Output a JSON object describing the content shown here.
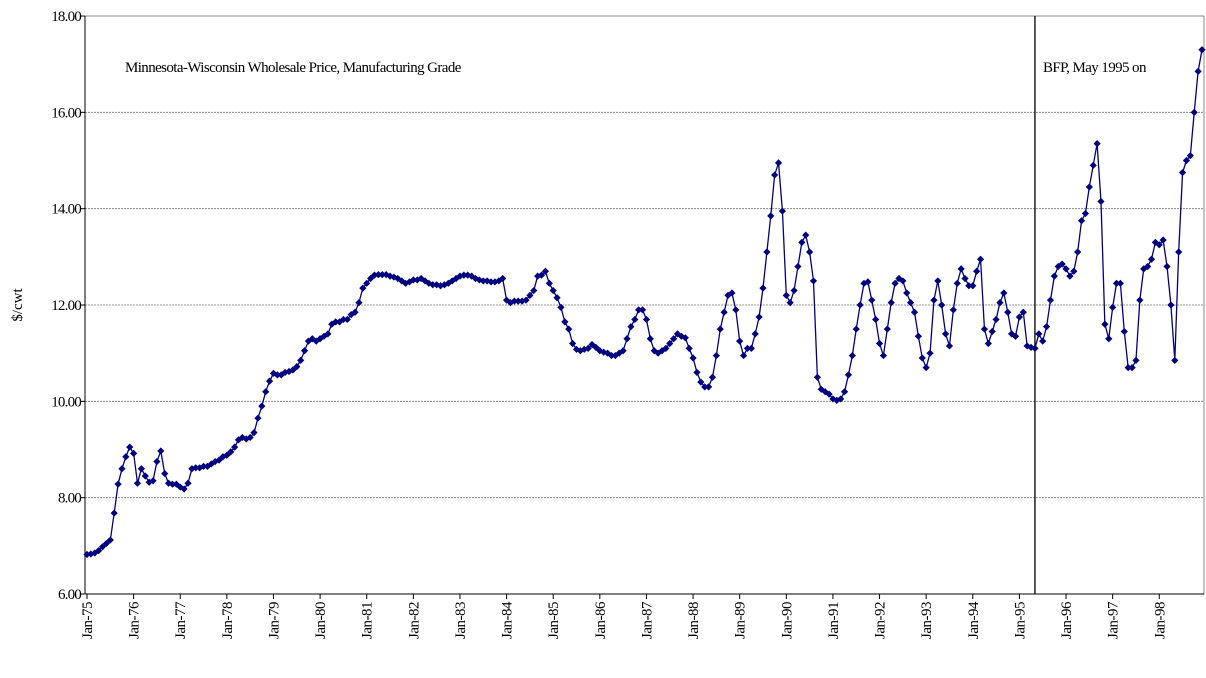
{
  "chart_data": {
    "type": "line",
    "y_label": "$/cwt",
    "annotations": [
      {
        "text": "Minnesota-Wisconsin Wholesale Price, Manufacturing Grade"
      },
      {
        "text": "BFP, May 1995 on",
        "category_index": 244
      }
    ],
    "categories": [
      "Jan-75",
      null,
      null,
      null,
      null,
      null,
      null,
      null,
      null,
      null,
      null,
      null,
      "Jan-76",
      null,
      null,
      null,
      null,
      null,
      null,
      null,
      null,
      null,
      null,
      null,
      "Jan-77",
      null,
      null,
      null,
      null,
      null,
      null,
      null,
      null,
      null,
      null,
      null,
      "Jan-78",
      null,
      null,
      null,
      null,
      null,
      null,
      null,
      null,
      null,
      null,
      null,
      "Jan-79",
      null,
      null,
      null,
      null,
      null,
      null,
      null,
      null,
      null,
      null,
      null,
      "Jan-80",
      null,
      null,
      null,
      null,
      null,
      null,
      null,
      null,
      null,
      null,
      null,
      "Jan-81",
      null,
      null,
      null,
      null,
      null,
      null,
      null,
      null,
      null,
      null,
      null,
      "Jan-82",
      null,
      null,
      null,
      null,
      null,
      null,
      null,
      null,
      null,
      null,
      null,
      "Jan-83",
      null,
      null,
      null,
      null,
      null,
      null,
      null,
      null,
      null,
      null,
      null,
      "Jan-84",
      null,
      null,
      null,
      null,
      null,
      null,
      null,
      null,
      null,
      null,
      null,
      "Jan-85",
      null,
      null,
      null,
      null,
      null,
      null,
      null,
      null,
      null,
      null,
      null,
      "Jan-86",
      null,
      null,
      null,
      null,
      null,
      null,
      null,
      null,
      null,
      null,
      null,
      "Jan-87",
      null,
      null,
      null,
      null,
      null,
      null,
      null,
      null,
      null,
      null,
      null,
      "Jan-88",
      null,
      null,
      null,
      null,
      null,
      null,
      null,
      null,
      null,
      null,
      null,
      "Jan-89",
      null,
      null,
      null,
      null,
      null,
      null,
      null,
      null,
      null,
      null,
      null,
      "Jan-90",
      null,
      null,
      null,
      null,
      null,
      null,
      null,
      null,
      null,
      null,
      null,
      "Jan-91",
      null,
      null,
      null,
      null,
      null,
      null,
      null,
      null,
      null,
      null,
      null,
      "Jan-92",
      null,
      null,
      null,
      null,
      null,
      null,
      null,
      null,
      null,
      null,
      null,
      "Jan-93",
      null,
      null,
      null,
      null,
      null,
      null,
      null,
      null,
      null,
      null,
      null,
      "Jan-94",
      null,
      null,
      null,
      null,
      null,
      null,
      null,
      null,
      null,
      null,
      null,
      "Jan-95",
      null,
      null,
      null,
      null,
      null,
      null,
      null,
      null,
      null,
      null,
      null,
      "Jan-96",
      null,
      null,
      null,
      null,
      null,
      null,
      null,
      null,
      null,
      null,
      null,
      "Jan-97",
      null,
      null,
      null,
      null,
      null,
      null,
      null,
      null,
      null,
      null,
      null,
      "Jan-98",
      null,
      null,
      null,
      null,
      null,
      null,
      null,
      null,
      null,
      null,
      null
    ],
    "color": "#000080",
    "values": [
      6.82,
      6.83,
      6.85,
      6.9,
      6.98,
      7.05,
      7.12,
      7.68,
      8.28,
      8.6,
      8.85,
      9.05,
      8.92,
      8.3,
      8.6,
      8.45,
      8.32,
      8.35,
      8.75,
      8.97,
      8.5,
      8.3,
      8.28,
      8.28,
      8.22,
      8.18,
      8.3,
      8.6,
      8.62,
      8.62,
      8.65,
      8.65,
      8.7,
      8.75,
      8.78,
      8.85,
      8.88,
      8.95,
      9.05,
      9.2,
      9.25,
      9.22,
      9.25,
      9.35,
      9.65,
      9.9,
      10.2,
      10.42,
      10.58,
      10.55,
      10.55,
      10.6,
      10.62,
      10.65,
      10.72,
      10.85,
      11.05,
      11.25,
      11.3,
      11.25,
      11.3,
      11.35,
      11.4,
      11.6,
      11.65,
      11.65,
      11.7,
      11.7,
      11.8,
      11.85,
      12.05,
      12.35,
      12.45,
      12.55,
      12.62,
      12.63,
      12.63,
      12.63,
      12.6,
      12.58,
      12.55,
      12.5,
      12.45,
      12.48,
      12.52,
      12.52,
      12.55,
      12.5,
      12.45,
      12.42,
      12.42,
      12.4,
      12.42,
      12.45,
      12.5,
      12.55,
      12.6,
      12.62,
      12.62,
      12.6,
      12.55,
      12.52,
      12.5,
      12.5,
      12.48,
      12.48,
      12.5,
      12.55,
      12.1,
      12.05,
      12.08,
      12.08,
      12.08,
      12.1,
      12.2,
      12.3,
      12.6,
      12.62,
      12.7,
      12.45,
      12.3,
      12.15,
      11.95,
      11.65,
      11.5,
      11.2,
      11.08,
      11.05,
      11.08,
      11.1,
      11.18,
      11.12,
      11.05,
      11.02,
      11.0,
      10.95,
      10.95,
      11.0,
      11.05,
      11.3,
      11.55,
      11.7,
      11.9,
      11.9,
      11.7,
      11.3,
      11.05,
      11.0,
      11.05,
      11.1,
      11.2,
      11.3,
      11.4,
      11.35,
      11.32,
      11.1,
      10.9,
      10.6,
      10.4,
      10.3,
      10.3,
      10.5,
      10.95,
      11.5,
      11.85,
      12.2,
      12.25,
      11.9,
      11.25,
      10.95,
      11.1,
      11.1,
      11.4,
      11.75,
      12.35,
      13.1,
      13.85,
      14.7,
      14.95,
      13.95,
      12.2,
      12.05,
      12.3,
      12.8,
      13.3,
      13.45,
      13.1,
      12.5,
      10.5,
      10.25,
      10.2,
      10.15,
      10.05,
      10.02,
      10.05,
      10.2,
      10.55,
      10.95,
      11.5,
      12.0,
      12.45,
      12.48,
      12.1,
      11.7,
      11.2,
      10.95,
      11.5,
      12.05,
      12.45,
      12.55,
      12.5,
      12.25,
      12.05,
      11.85,
      11.35,
      10.9,
      10.7,
      11.0,
      12.1,
      12.5,
      12.0,
      11.4,
      11.15,
      11.9,
      12.45,
      12.75,
      12.55,
      12.4,
      12.4,
      12.7,
      12.95,
      11.5,
      11.2,
      11.45,
      11.7,
      12.05,
      12.25,
      11.85,
      11.4,
      11.35,
      11.75,
      11.85,
      11.15,
      11.12,
      11.1,
      11.4,
      11.25,
      11.55,
      12.1,
      12.6,
      12.8,
      12.85,
      12.75,
      12.6,
      12.7,
      13.1,
      13.75,
      13.9,
      14.45,
      14.9,
      15.35,
      14.15,
      11.6,
      11.3,
      11.95,
      12.45,
      12.45,
      11.45,
      10.7,
      10.7,
      10.85,
      12.1,
      12.75,
      12.8,
      12.95,
      13.3,
      13.25,
      13.35,
      12.8,
      12.0,
      10.85,
      13.1,
      14.75,
      15.0,
      15.1,
      16.0,
      16.85,
      17.3
    ],
    "ylim": [
      6,
      18
    ],
    "yticks": [
      {
        "value": 6,
        "label": "6.00"
      },
      {
        "value": 8,
        "label": "8.00"
      },
      {
        "value": 10,
        "label": "10.00"
      },
      {
        "value": 12,
        "label": "12.00"
      },
      {
        "value": 14,
        "label": "14.00"
      },
      {
        "value": 16,
        "label": "16.00"
      },
      {
        "value": 18,
        "label": "18.00"
      }
    ],
    "grid": true
  }
}
